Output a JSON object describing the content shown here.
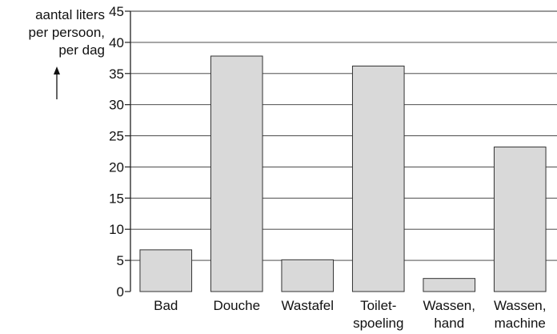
{
  "chart_data": {
    "type": "bar",
    "title": "",
    "xlabel": "",
    "ylabel_lines": [
      "aantal liters",
      "per persoon,",
      "per dag"
    ],
    "ylim": [
      0,
      45
    ],
    "y_ticks": [
      0,
      5,
      10,
      15,
      20,
      25,
      30,
      35,
      40,
      45
    ],
    "grid": true,
    "categories": [
      [
        "Bad"
      ],
      [
        "Douche"
      ],
      [
        "Wastafel"
      ],
      [
        "Toilet-",
        "spoeling"
      ],
      [
        "Wassen,",
        "hand"
      ],
      [
        "Wassen,",
        "machine"
      ]
    ],
    "values": [
      6.7,
      37.8,
      5.1,
      36.2,
      2.1,
      23.2
    ],
    "bar_color": "#d9d9d9",
    "bar_edge_color": "#333333",
    "grid_color": "#333333"
  }
}
